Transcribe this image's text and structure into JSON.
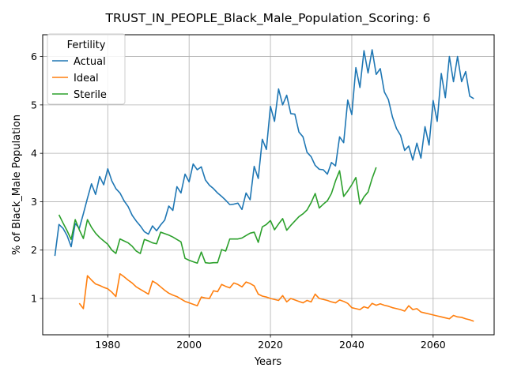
{
  "chart_data": {
    "type": "line",
    "title": "TRUST_IN_PEOPLE_Black_Male_Population_Scoring: 6",
    "xlabel": "Years",
    "ylabel": "% of Black_Male Population",
    "xlim": [
      1964,
      2075
    ],
    "ylim": [
      0.25,
      6.45
    ],
    "grid": true,
    "x_ticks": [
      1980,
      2000,
      2020,
      2040,
      2060
    ],
    "y_ticks": [
      1,
      2,
      3,
      4,
      5,
      6
    ],
    "legend": {
      "title": "Fertility",
      "placement": "top-left"
    },
    "series": [
      {
        "name": "Actual",
        "color": "#1f77b4",
        "points": [
          [
            1967,
            1.88
          ],
          [
            1968,
            2.53
          ],
          [
            1969,
            2.45
          ],
          [
            1970,
            2.3
          ],
          [
            1971,
            2.07
          ],
          [
            1972,
            2.55
          ],
          [
            1973,
            2.45
          ],
          [
            1974,
            2.75
          ],
          [
            1975,
            3.07
          ],
          [
            1976,
            3.37
          ],
          [
            1977,
            3.15
          ],
          [
            1978,
            3.52
          ],
          [
            1979,
            3.35
          ],
          [
            1980,
            3.68
          ],
          [
            1981,
            3.43
          ],
          [
            1982,
            3.27
          ],
          [
            1983,
            3.18
          ],
          [
            1984,
            3.02
          ],
          [
            1985,
            2.9
          ],
          [
            1986,
            2.72
          ],
          [
            1987,
            2.6
          ],
          [
            1988,
            2.5
          ],
          [
            1989,
            2.38
          ],
          [
            1990,
            2.33
          ],
          [
            1991,
            2.5
          ],
          [
            1992,
            2.4
          ],
          [
            1993,
            2.52
          ],
          [
            1994,
            2.62
          ],
          [
            1995,
            2.91
          ],
          [
            1996,
            2.82
          ],
          [
            1997,
            3.31
          ],
          [
            1998,
            3.18
          ],
          [
            1999,
            3.57
          ],
          [
            2000,
            3.41
          ],
          [
            2001,
            3.78
          ],
          [
            2002,
            3.66
          ],
          [
            2003,
            3.72
          ],
          [
            2004,
            3.45
          ],
          [
            2005,
            3.34
          ],
          [
            2006,
            3.27
          ],
          [
            2007,
            3.18
          ],
          [
            2008,
            3.11
          ],
          [
            2009,
            3.03
          ],
          [
            2010,
            2.94
          ],
          [
            2011,
            2.95
          ],
          [
            2012,
            2.97
          ],
          [
            2013,
            2.84
          ],
          [
            2014,
            3.18
          ],
          [
            2015,
            3.04
          ],
          [
            2016,
            3.73
          ],
          [
            2017,
            3.48
          ],
          [
            2018,
            4.29
          ],
          [
            2019,
            4.08
          ],
          [
            2020,
            4.97
          ],
          [
            2021,
            4.66
          ],
          [
            2022,
            5.33
          ],
          [
            2023,
            5.0
          ],
          [
            2024,
            5.2
          ],
          [
            2025,
            4.82
          ],
          [
            2026,
            4.81
          ],
          [
            2027,
            4.44
          ],
          [
            2028,
            4.34
          ],
          [
            2029,
            4.02
          ],
          [
            2030,
            3.93
          ],
          [
            2031,
            3.75
          ],
          [
            2032,
            3.67
          ],
          [
            2033,
            3.66
          ],
          [
            2034,
            3.57
          ],
          [
            2035,
            3.81
          ],
          [
            2036,
            3.74
          ],
          [
            2037,
            4.34
          ],
          [
            2038,
            4.22
          ],
          [
            2039,
            5.1
          ],
          [
            2040,
            4.8
          ],
          [
            2041,
            5.77
          ],
          [
            2042,
            5.36
          ],
          [
            2043,
            6.12
          ],
          [
            2044,
            5.66
          ],
          [
            2045,
            6.14
          ],
          [
            2046,
            5.63
          ],
          [
            2047,
            5.75
          ],
          [
            2048,
            5.27
          ],
          [
            2049,
            5.11
          ],
          [
            2050,
            4.75
          ],
          [
            2051,
            4.51
          ],
          [
            2052,
            4.37
          ],
          [
            2053,
            4.06
          ],
          [
            2054,
            4.15
          ],
          [
            2055,
            3.86
          ],
          [
            2056,
            4.21
          ],
          [
            2057,
            3.9
          ],
          [
            2058,
            4.55
          ],
          [
            2059,
            4.17
          ],
          [
            2060,
            5.09
          ],
          [
            2061,
            4.66
          ],
          [
            2062,
            5.65
          ],
          [
            2063,
            5.15
          ],
          [
            2064,
            6.0
          ],
          [
            2065,
            5.48
          ],
          [
            2066,
            6.0
          ],
          [
            2067,
            5.48
          ],
          [
            2068,
            5.69
          ],
          [
            2069,
            5.18
          ],
          [
            2070,
            5.13
          ]
        ]
      },
      {
        "name": "Ideal",
        "color": "#ff7f0e",
        "points": [
          [
            1973,
            0.9
          ],
          [
            1974,
            0.79
          ],
          [
            1975,
            1.47
          ],
          [
            1976,
            1.38
          ],
          [
            1977,
            1.3
          ],
          [
            1978,
            1.27
          ],
          [
            1979,
            1.23
          ],
          [
            1980,
            1.2
          ],
          [
            1981,
            1.13
          ],
          [
            1982,
            1.04
          ],
          [
            1983,
            1.51
          ],
          [
            1984,
            1.45
          ],
          [
            1985,
            1.38
          ],
          [
            1986,
            1.32
          ],
          [
            1987,
            1.24
          ],
          [
            1988,
            1.19
          ],
          [
            1989,
            1.14
          ],
          [
            1990,
            1.09
          ],
          [
            1991,
            1.36
          ],
          [
            1992,
            1.31
          ],
          [
            1993,
            1.24
          ],
          [
            1994,
            1.17
          ],
          [
            1995,
            1.11
          ],
          [
            1996,
            1.07
          ],
          [
            1997,
            1.04
          ],
          [
            1998,
            0.99
          ],
          [
            1999,
            0.94
          ],
          [
            2000,
            0.91
          ],
          [
            2001,
            0.88
          ],
          [
            2002,
            0.85
          ],
          [
            2003,
            1.03
          ],
          [
            2004,
            1.01
          ],
          [
            2005,
            1.0
          ],
          [
            2006,
            1.16
          ],
          [
            2007,
            1.14
          ],
          [
            2008,
            1.29
          ],
          [
            2009,
            1.25
          ],
          [
            2010,
            1.22
          ],
          [
            2011,
            1.32
          ],
          [
            2012,
            1.29
          ],
          [
            2013,
            1.24
          ],
          [
            2014,
            1.34
          ],
          [
            2015,
            1.31
          ],
          [
            2016,
            1.26
          ],
          [
            2017,
            1.09
          ],
          [
            2018,
            1.05
          ],
          [
            2019,
            1.03
          ],
          [
            2020,
            1.0
          ],
          [
            2021,
            0.98
          ],
          [
            2022,
            0.96
          ],
          [
            2023,
            1.06
          ],
          [
            2024,
            0.93
          ],
          [
            2025,
            1.0
          ],
          [
            2026,
            0.97
          ],
          [
            2027,
            0.94
          ],
          [
            2028,
            0.91
          ],
          [
            2029,
            0.96
          ],
          [
            2030,
            0.93
          ],
          [
            2031,
            1.09
          ],
          [
            2032,
            1.0
          ],
          [
            2033,
            0.98
          ],
          [
            2034,
            0.96
          ],
          [
            2035,
            0.93
          ],
          [
            2036,
            0.91
          ],
          [
            2037,
            0.97
          ],
          [
            2038,
            0.94
          ],
          [
            2039,
            0.9
          ],
          [
            2040,
            0.81
          ],
          [
            2041,
            0.79
          ],
          [
            2042,
            0.77
          ],
          [
            2043,
            0.83
          ],
          [
            2044,
            0.8
          ],
          [
            2045,
            0.9
          ],
          [
            2046,
            0.86
          ],
          [
            2047,
            0.89
          ],
          [
            2048,
            0.86
          ],
          [
            2049,
            0.84
          ],
          [
            2050,
            0.81
          ],
          [
            2051,
            0.79
          ],
          [
            2052,
            0.77
          ],
          [
            2053,
            0.74
          ],
          [
            2054,
            0.85
          ],
          [
            2055,
            0.77
          ],
          [
            2056,
            0.79
          ],
          [
            2057,
            0.72
          ],
          [
            2058,
            0.7
          ],
          [
            2059,
            0.68
          ],
          [
            2060,
            0.66
          ],
          [
            2061,
            0.64
          ],
          [
            2062,
            0.62
          ],
          [
            2063,
            0.6
          ],
          [
            2064,
            0.58
          ],
          [
            2065,
            0.65
          ],
          [
            2066,
            0.62
          ],
          [
            2067,
            0.61
          ],
          [
            2068,
            0.58
          ],
          [
            2069,
            0.56
          ],
          [
            2070,
            0.53
          ]
        ]
      },
      {
        "name": "Sterile",
        "color": "#2ca02c",
        "points": [
          [
            1968,
            2.73
          ],
          [
            1969,
            2.56
          ],
          [
            1970,
            2.4
          ],
          [
            1971,
            2.22
          ],
          [
            1972,
            2.63
          ],
          [
            1973,
            2.42
          ],
          [
            1974,
            2.24
          ],
          [
            1975,
            2.63
          ],
          [
            1976,
            2.47
          ],
          [
            1977,
            2.35
          ],
          [
            1978,
            2.26
          ],
          [
            1979,
            2.19
          ],
          [
            1980,
            2.12
          ],
          [
            1981,
            2.0
          ],
          [
            1982,
            1.93
          ],
          [
            1983,
            2.23
          ],
          [
            1984,
            2.19
          ],
          [
            1985,
            2.15
          ],
          [
            1986,
            2.08
          ],
          [
            1987,
            1.98
          ],
          [
            1988,
            1.93
          ],
          [
            1989,
            2.22
          ],
          [
            1990,
            2.19
          ],
          [
            1991,
            2.15
          ],
          [
            1992,
            2.13
          ],
          [
            1993,
            2.37
          ],
          [
            1994,
            2.34
          ],
          [
            1995,
            2.31
          ],
          [
            1996,
            2.27
          ],
          [
            1997,
            2.22
          ],
          [
            1998,
            2.17
          ],
          [
            1999,
            1.83
          ],
          [
            2000,
            1.79
          ],
          [
            2001,
            1.76
          ],
          [
            2002,
            1.73
          ],
          [
            2003,
            1.96
          ],
          [
            2004,
            1.74
          ],
          [
            2005,
            1.73
          ],
          [
            2006,
            1.74
          ],
          [
            2007,
            1.74
          ],
          [
            2008,
            2.01
          ],
          [
            2009,
            1.98
          ],
          [
            2010,
            2.23
          ],
          [
            2011,
            2.23
          ],
          [
            2012,
            2.23
          ],
          [
            2013,
            2.25
          ],
          [
            2014,
            2.3
          ],
          [
            2015,
            2.35
          ],
          [
            2016,
            2.37
          ],
          [
            2017,
            2.16
          ],
          [
            2018,
            2.48
          ],
          [
            2019,
            2.53
          ],
          [
            2020,
            2.61
          ],
          [
            2021,
            2.42
          ],
          [
            2022,
            2.54
          ],
          [
            2023,
            2.65
          ],
          [
            2024,
            2.41
          ],
          [
            2025,
            2.51
          ],
          [
            2026,
            2.6
          ],
          [
            2027,
            2.69
          ],
          [
            2028,
            2.75
          ],
          [
            2029,
            2.83
          ],
          [
            2030,
            2.98
          ],
          [
            2031,
            3.17
          ],
          [
            2032,
            2.87
          ],
          [
            2033,
            2.95
          ],
          [
            2034,
            3.02
          ],
          [
            2035,
            3.17
          ],
          [
            2036,
            3.43
          ],
          [
            2037,
            3.64
          ],
          [
            2038,
            3.11
          ],
          [
            2039,
            3.22
          ],
          [
            2040,
            3.35
          ],
          [
            2041,
            3.5
          ],
          [
            2042,
            2.95
          ],
          [
            2043,
            3.1
          ],
          [
            2044,
            3.2
          ],
          [
            2045,
            3.48
          ],
          [
            2046,
            3.71
          ]
        ]
      }
    ]
  }
}
